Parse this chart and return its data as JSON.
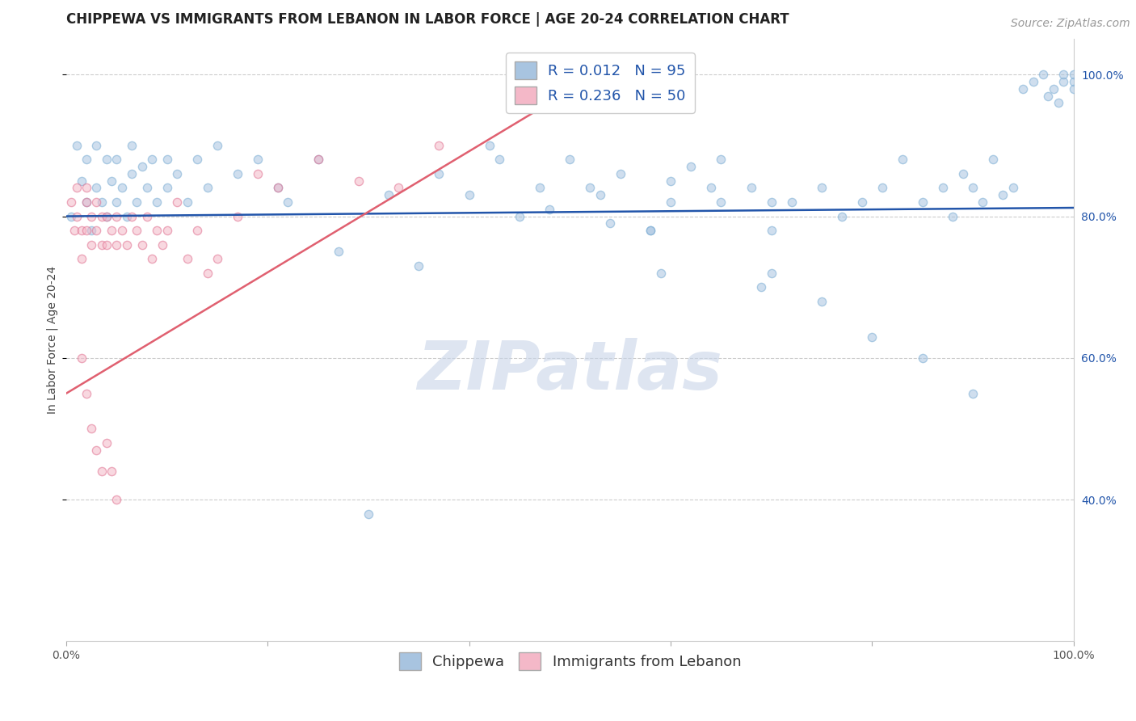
{
  "title": "CHIPPEWA VS IMMIGRANTS FROM LEBANON IN LABOR FORCE | AGE 20-24 CORRELATION CHART",
  "source_text": "Source: ZipAtlas.com",
  "ylabel": "In Labor Force | Age 20-24",
  "watermark": "ZIPatlas",
  "xlim": [
    0.0,
    1.0
  ],
  "ylim": [
    0.2,
    1.05
  ],
  "x_ticks": [
    0.0,
    0.2,
    0.4,
    0.6,
    0.8,
    1.0
  ],
  "x_tick_labels": [
    "0.0%",
    "",
    "",
    "",
    "",
    "100.0%"
  ],
  "y_ticks_right": [
    0.4,
    0.6,
    0.8,
    1.0
  ],
  "y_tick_labels_right": [
    "40.0%",
    "60.0%",
    "80.0%",
    "100.0%"
  ],
  "chippewa_color": "#a8c4e0",
  "chippewa_edge_color": "#7aadd4",
  "lebanon_color": "#f4b8c8",
  "lebanon_edge_color": "#e07090",
  "chippewa_line_color": "#2255aa",
  "lebanon_line_color": "#e06070",
  "legend_R1": "R = 0.012",
  "legend_N1": "N = 95",
  "legend_R2": "R = 0.236",
  "legend_N2": "N = 50",
  "legend_label1": "Chippewa",
  "legend_label2": "Immigrants from Lebanon",
  "chippewa_x": [
    0.005,
    0.01,
    0.015,
    0.02,
    0.02,
    0.025,
    0.03,
    0.03,
    0.035,
    0.04,
    0.04,
    0.045,
    0.05,
    0.05,
    0.055,
    0.06,
    0.065,
    0.065,
    0.07,
    0.075,
    0.08,
    0.085,
    0.09,
    0.1,
    0.1,
    0.11,
    0.12,
    0.13,
    0.14,
    0.15,
    0.17,
    0.19,
    0.21,
    0.25,
    0.3,
    0.35,
    0.4,
    0.45,
    0.5,
    0.52,
    0.55,
    0.58,
    0.6,
    0.62,
    0.65,
    0.68,
    0.7,
    0.72,
    0.75,
    0.77,
    0.79,
    0.81,
    0.83,
    0.85,
    0.87,
    0.88,
    0.89,
    0.9,
    0.91,
    0.92,
    0.93,
    0.94,
    0.95,
    0.96,
    0.97,
    0.975,
    0.98,
    0.985,
    0.99,
    0.99,
    1.0,
    1.0,
    1.0,
    0.6,
    0.65,
    0.7,
    0.42,
    0.47,
    0.53,
    0.58,
    0.64,
    0.7,
    0.75,
    0.8,
    0.85,
    0.9,
    0.22,
    0.27,
    0.32,
    0.37,
    0.43,
    0.48,
    0.54,
    0.59,
    0.69
  ],
  "chippewa_y": [
    0.8,
    0.9,
    0.85,
    0.82,
    0.88,
    0.78,
    0.84,
    0.9,
    0.82,
    0.88,
    0.8,
    0.85,
    0.82,
    0.88,
    0.84,
    0.8,
    0.86,
    0.9,
    0.82,
    0.87,
    0.84,
    0.88,
    0.82,
    0.88,
    0.84,
    0.86,
    0.82,
    0.88,
    0.84,
    0.9,
    0.86,
    0.88,
    0.84,
    0.88,
    0.38,
    0.73,
    0.83,
    0.8,
    0.88,
    0.84,
    0.86,
    0.78,
    0.82,
    0.87,
    0.82,
    0.84,
    0.78,
    0.82,
    0.84,
    0.8,
    0.82,
    0.84,
    0.88,
    0.82,
    0.84,
    0.8,
    0.86,
    0.84,
    0.82,
    0.88,
    0.83,
    0.84,
    0.98,
    0.99,
    1.0,
    0.97,
    0.98,
    0.96,
    0.99,
    1.0,
    0.99,
    0.98,
    1.0,
    0.85,
    0.88,
    0.82,
    0.9,
    0.84,
    0.83,
    0.78,
    0.84,
    0.72,
    0.68,
    0.63,
    0.6,
    0.55,
    0.82,
    0.75,
    0.83,
    0.86,
    0.88,
    0.81,
    0.79,
    0.72,
    0.7
  ],
  "lebanon_x": [
    0.005,
    0.008,
    0.01,
    0.01,
    0.015,
    0.015,
    0.02,
    0.02,
    0.02,
    0.025,
    0.025,
    0.03,
    0.03,
    0.035,
    0.035,
    0.04,
    0.04,
    0.045,
    0.05,
    0.05,
    0.055,
    0.06,
    0.065,
    0.07,
    0.075,
    0.08,
    0.085,
    0.09,
    0.095,
    0.1,
    0.11,
    0.12,
    0.13,
    0.14,
    0.15,
    0.17,
    0.19,
    0.21,
    0.25,
    0.29,
    0.33,
    0.37,
    0.015,
    0.02,
    0.025,
    0.03,
    0.035,
    0.04,
    0.045,
    0.05
  ],
  "lebanon_y": [
    0.82,
    0.78,
    0.84,
    0.8,
    0.78,
    0.74,
    0.82,
    0.78,
    0.84,
    0.8,
    0.76,
    0.82,
    0.78,
    0.8,
    0.76,
    0.8,
    0.76,
    0.78,
    0.8,
    0.76,
    0.78,
    0.76,
    0.8,
    0.78,
    0.76,
    0.8,
    0.74,
    0.78,
    0.76,
    0.78,
    0.82,
    0.74,
    0.78,
    0.72,
    0.74,
    0.8,
    0.86,
    0.84,
    0.88,
    0.85,
    0.84,
    0.9,
    0.6,
    0.55,
    0.5,
    0.47,
    0.44,
    0.48,
    0.44,
    0.4
  ],
  "chippewa_trend_x": [
    0.0,
    1.0
  ],
  "chippewa_trend_y": [
    0.8,
    0.812
  ],
  "lebanon_trend_x": [
    0.0,
    0.55
  ],
  "lebanon_trend_y": [
    0.55,
    1.02
  ],
  "grid_color": "#cccccc",
  "background_color": "#ffffff",
  "title_color": "#222222",
  "title_fontsize": 12,
  "axis_label_fontsize": 10,
  "tick_fontsize": 10,
  "legend_fontsize": 13,
  "source_fontsize": 10,
  "watermark_fontsize": 60,
  "watermark_color": "#c8d4e8",
  "scatter_size": 55,
  "scatter_alpha": 0.55,
  "scatter_linewidth": 1.0
}
